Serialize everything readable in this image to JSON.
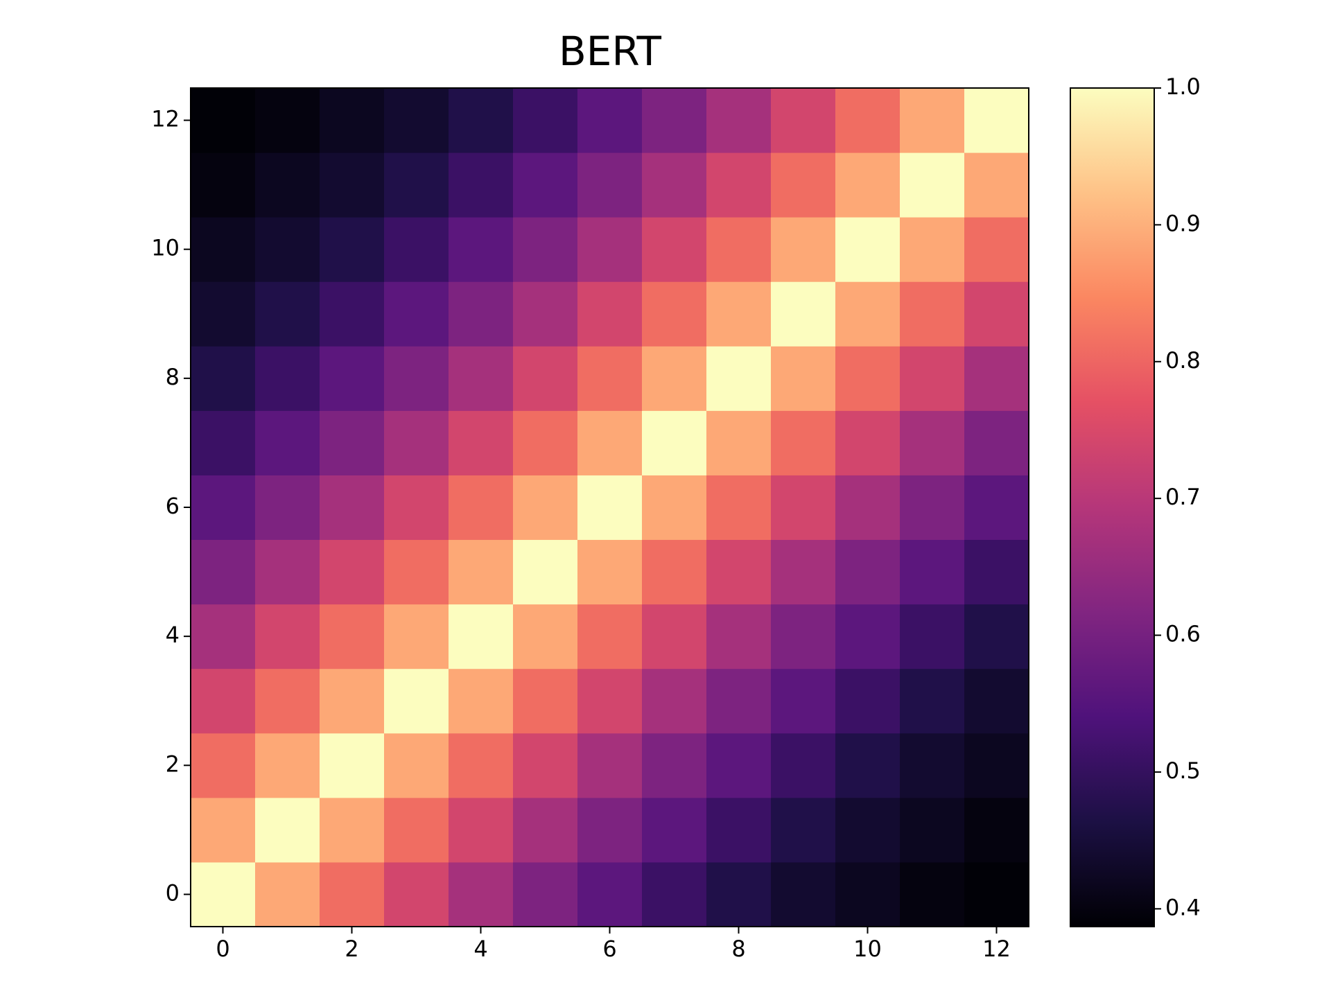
{
  "chart_data": {
    "type": "heatmap",
    "title": "BERT",
    "colormap": "magma",
    "z": [
      [
        1.0,
        0.89,
        0.81,
        0.74,
        0.67,
        0.61,
        0.56,
        0.51,
        0.47,
        0.44,
        0.42,
        0.4,
        0.39
      ],
      [
        0.89,
        1.0,
        0.89,
        0.81,
        0.74,
        0.67,
        0.61,
        0.56,
        0.51,
        0.47,
        0.44,
        0.42,
        0.4
      ],
      [
        0.81,
        0.89,
        1.0,
        0.89,
        0.81,
        0.74,
        0.67,
        0.61,
        0.56,
        0.51,
        0.47,
        0.44,
        0.42
      ],
      [
        0.74,
        0.81,
        0.89,
        1.0,
        0.89,
        0.81,
        0.74,
        0.67,
        0.61,
        0.56,
        0.51,
        0.47,
        0.44
      ],
      [
        0.67,
        0.74,
        0.81,
        0.89,
        1.0,
        0.89,
        0.81,
        0.74,
        0.67,
        0.61,
        0.56,
        0.51,
        0.47
      ],
      [
        0.61,
        0.67,
        0.74,
        0.81,
        0.89,
        1.0,
        0.89,
        0.81,
        0.74,
        0.67,
        0.61,
        0.56,
        0.51
      ],
      [
        0.56,
        0.61,
        0.67,
        0.74,
        0.81,
        0.89,
        1.0,
        0.89,
        0.81,
        0.74,
        0.67,
        0.61,
        0.56
      ],
      [
        0.51,
        0.56,
        0.61,
        0.67,
        0.74,
        0.81,
        0.89,
        1.0,
        0.89,
        0.81,
        0.74,
        0.67,
        0.61
      ],
      [
        0.47,
        0.51,
        0.56,
        0.61,
        0.67,
        0.74,
        0.81,
        0.89,
        1.0,
        0.89,
        0.81,
        0.74,
        0.67
      ],
      [
        0.44,
        0.47,
        0.51,
        0.56,
        0.61,
        0.67,
        0.74,
        0.81,
        0.89,
        1.0,
        0.89,
        0.81,
        0.74
      ],
      [
        0.42,
        0.44,
        0.47,
        0.51,
        0.56,
        0.61,
        0.67,
        0.74,
        0.81,
        0.89,
        1.0,
        0.89,
        0.81
      ],
      [
        0.4,
        0.42,
        0.44,
        0.47,
        0.51,
        0.56,
        0.61,
        0.67,
        0.74,
        0.81,
        0.89,
        1.0,
        0.89
      ],
      [
        0.39,
        0.4,
        0.42,
        0.44,
        0.47,
        0.51,
        0.56,
        0.61,
        0.67,
        0.74,
        0.81,
        0.89,
        1.0
      ]
    ],
    "xlim": [
      -0.5,
      12.5
    ],
    "xticks": [
      0,
      2,
      4,
      6,
      8,
      10,
      12
    ],
    "ylim": [
      -0.5,
      12.5
    ],
    "yticks": [
      0,
      2,
      4,
      6,
      8,
      10,
      12
    ],
    "clim": [
      0.387,
      1.0
    ],
    "cticks": [
      {
        "value": 0.4,
        "label": "0.4"
      },
      {
        "value": 0.5,
        "label": "0.5"
      },
      {
        "value": 0.6,
        "label": "0.6"
      },
      {
        "value": 0.7,
        "label": "0.7"
      },
      {
        "value": 0.8,
        "label": "0.8"
      },
      {
        "value": 0.9,
        "label": "0.9"
      },
      {
        "value": 1.0,
        "label": "1.0"
      }
    ]
  }
}
